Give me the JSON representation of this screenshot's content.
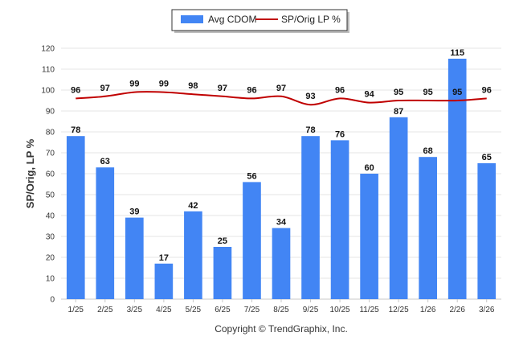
{
  "chart_data": {
    "type": "bar",
    "categories": [
      "1/25",
      "2/25",
      "3/25",
      "4/25",
      "5/25",
      "6/25",
      "7/25",
      "8/25",
      "9/25",
      "10/25",
      "11/25",
      "12/25",
      "1/26",
      "2/26",
      "3/26"
    ],
    "series": [
      {
        "name": "Avg CDOM",
        "type": "bar",
        "color": "#4285f4",
        "values": [
          78,
          63,
          39,
          17,
          42,
          25,
          56,
          34,
          78,
          76,
          60,
          87,
          68,
          115,
          65
        ]
      },
      {
        "name": "SP/Orig LP %",
        "type": "line",
        "color": "#c00000",
        "values": [
          96,
          97,
          99,
          99,
          98,
          97,
          96,
          97,
          93,
          96,
          94,
          95,
          95,
          95,
          96
        ]
      }
    ],
    "ylabel": "SP/Orig, LP %",
    "ylim": [
      0,
      120
    ],
    "yticks": [
      0,
      10,
      20,
      30,
      40,
      50,
      60,
      70,
      80,
      90,
      100,
      110,
      120
    ],
    "grid": true,
    "legend_position": "top-center"
  },
  "footer": {
    "copyright": "Copyright © TrendGraphix, Inc."
  }
}
